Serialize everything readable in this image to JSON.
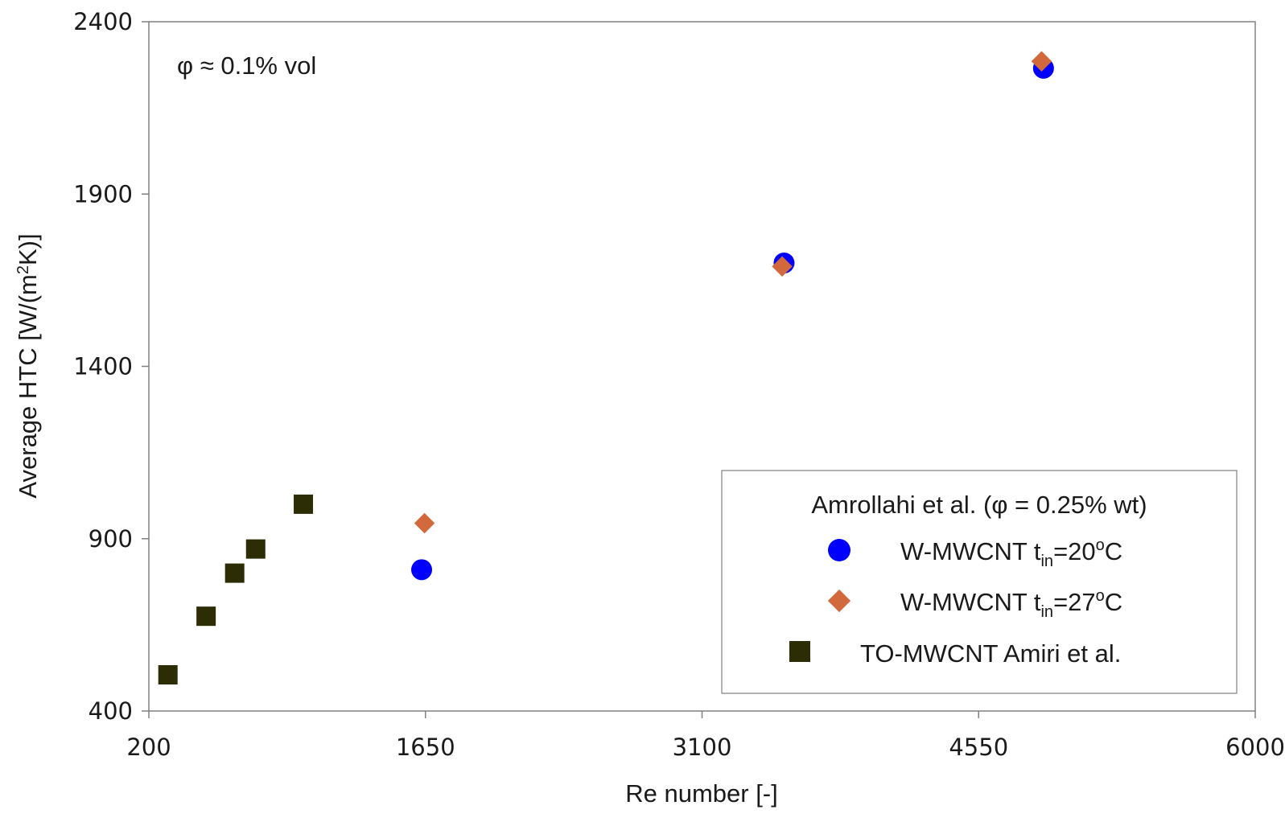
{
  "chart_data": {
    "type": "scatter",
    "title": "",
    "xlabel": "Re number [-]",
    "ylabel": {
      "prefix": "Average HTC [W/(m",
      "sup": "2",
      "suffix": "K)]"
    },
    "xlim": [
      200,
      6000
    ],
    "ylim": [
      400,
      2400
    ],
    "xticks": [
      200,
      1650,
      3100,
      4550,
      6000
    ],
    "yticks": [
      400,
      900,
      1400,
      1900,
      2400
    ],
    "grid": false,
    "annotation": "φ ≈ 0.1% vol",
    "legend": {
      "placement": "bottom-right",
      "title": "Amrollahi et al. (φ = 0.25% wt)"
    },
    "series": [
      {
        "key": "w-mwcnt-20",
        "label_main": "W-MWCNT t",
        "label_sub": "in",
        "label_eq": "=20",
        "label_sup": "o",
        "label_end": "C",
        "marker": "circle",
        "color": "#0000ff",
        "points": [
          [
            1630,
            810
          ],
          [
            3530,
            1700
          ],
          [
            4890,
            2265
          ]
        ]
      },
      {
        "key": "w-mwcnt-27",
        "label_main": "W-MWCNT t",
        "label_sub": "in",
        "label_eq": "=27",
        "label_sup": "o",
        "label_end": "C",
        "marker": "diamond",
        "color": "#d2693c",
        "points": [
          [
            1645,
            945
          ],
          [
            3520,
            1690
          ],
          [
            4880,
            2285
          ]
        ]
      },
      {
        "key": "to-mwcnt-amiri",
        "label_main": "TO-MWCNT Amiri et al.",
        "marker": "square",
        "color": "#2d2d05",
        "points": [
          [
            300,
            505
          ],
          [
            500,
            675
          ],
          [
            650,
            800
          ],
          [
            760,
            870
          ],
          [
            1010,
            1000
          ]
        ]
      }
    ]
  }
}
